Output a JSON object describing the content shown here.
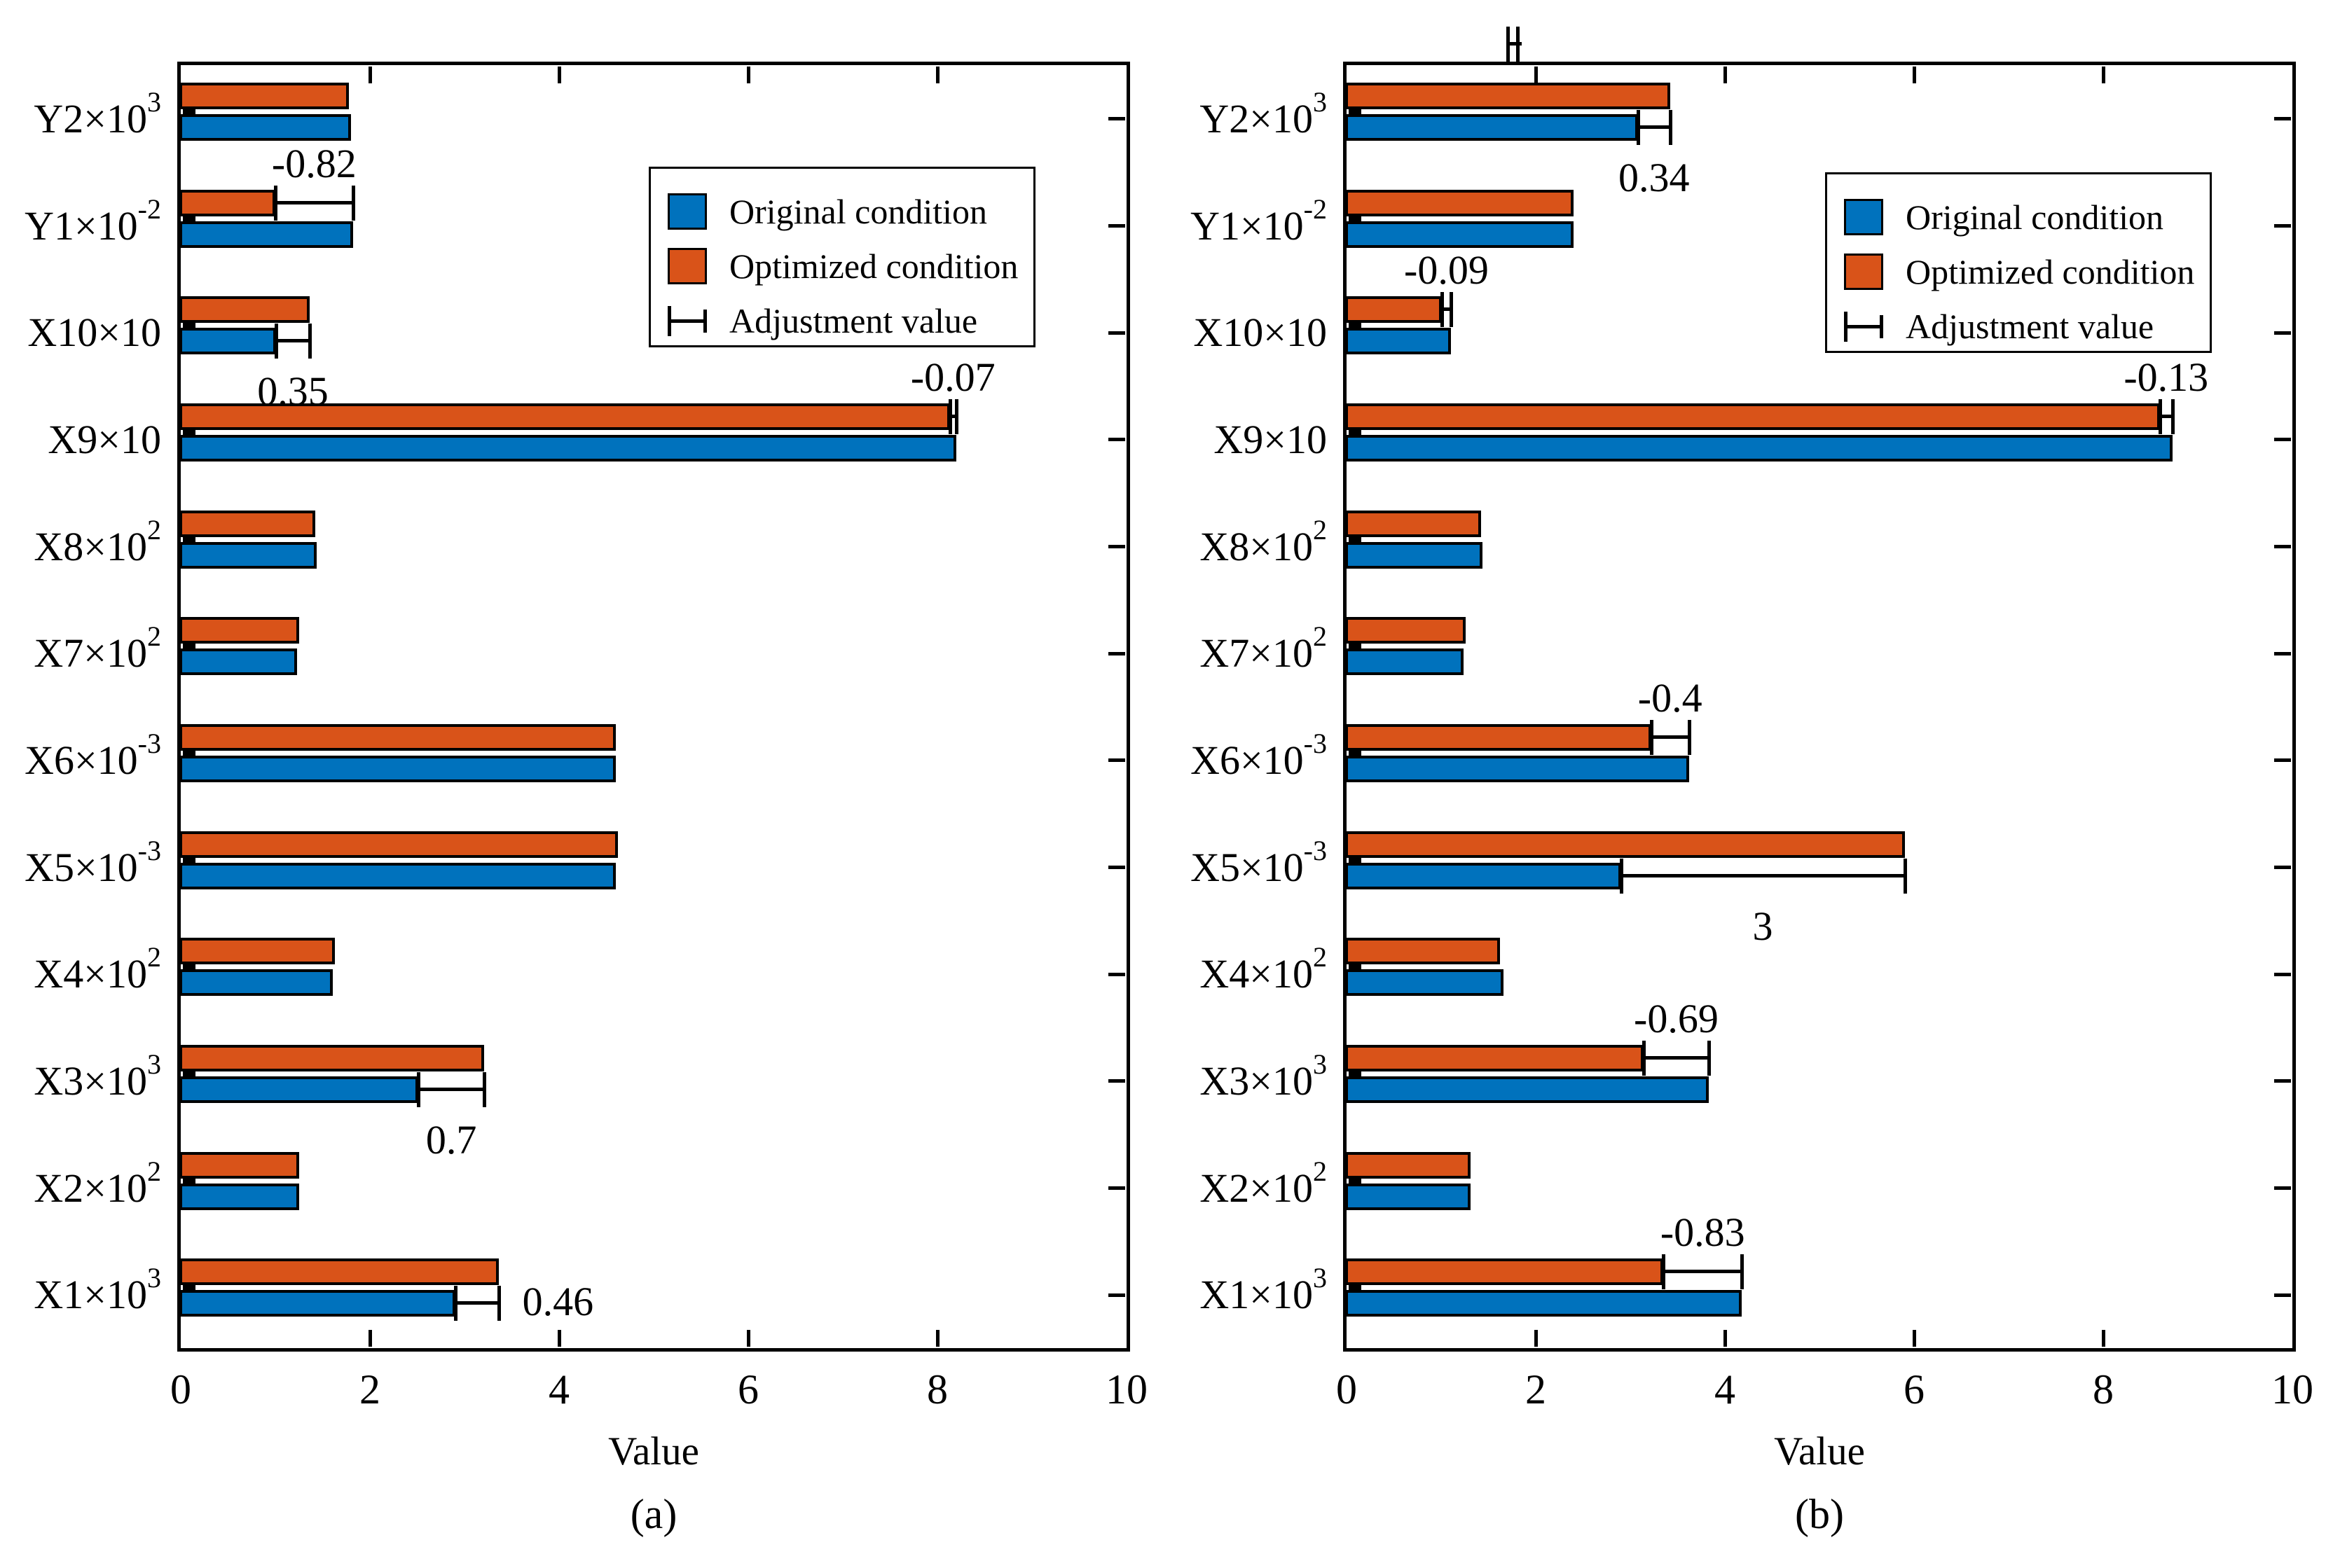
{
  "figure": {
    "background": "#ffffff",
    "axis_color": "#000000",
    "colors": {
      "original": "#0072BD",
      "optimized": "#D95319"
    },
    "xlabel": "Value",
    "x_tick_labels": [
      "0",
      "2",
      "4",
      "6",
      "8",
      "10"
    ],
    "legend": {
      "items": [
        {
          "type": "swatch",
          "color_key": "original",
          "label": "Original condition"
        },
        {
          "type": "swatch",
          "color_key": "optimized",
          "label": "Optimized condition"
        },
        {
          "type": "errorbar",
          "label": "Adjustment value"
        }
      ]
    }
  },
  "chart_data": [
    {
      "type": "bar",
      "orientation": "horizontal",
      "panel": "a",
      "caption": "(a)",
      "xlabel": "Value",
      "xlim": [
        0,
        10
      ],
      "x_ticks": [
        0,
        2,
        4,
        6,
        8,
        10
      ],
      "grid": false,
      "legend_entries": [
        "Original condition",
        "Optimized condition",
        "Adjustment value"
      ],
      "legend_position": "upper-right-inside",
      "categories_top_to_bottom": [
        "Y2×10³",
        "Y1×10⁻²",
        "X10×10",
        "X9×10",
        "X8×10²",
        "X7×10²",
        "X6×10⁻³",
        "X5×10⁻³",
        "X4×10²",
        "X3×10³",
        "X2×10²",
        "X1×10³"
      ],
      "category_parts": [
        {
          "base": "Y2×10",
          "sup": "3"
        },
        {
          "base": "Y1×10",
          "sup": "-2"
        },
        {
          "base": "X10×10",
          "sup": ""
        },
        {
          "base": "X9×10",
          "sup": ""
        },
        {
          "base": "X8×10",
          "sup": "2"
        },
        {
          "base": "X7×10",
          "sup": "2"
        },
        {
          "base": "X6×10",
          "sup": "-3"
        },
        {
          "base": "X5×10",
          "sup": "-3"
        },
        {
          "base": "X4×10",
          "sup": "2"
        },
        {
          "base": "X3×10",
          "sup": "3"
        },
        {
          "base": "X2×10",
          "sup": "2"
        },
        {
          "base": "X1×10",
          "sup": "3"
        }
      ],
      "series": [
        {
          "name": "Original condition",
          "color": "#0072BD",
          "values": [
            1.8,
            1.82,
            1.01,
            8.2,
            1.44,
            1.23,
            4.6,
            4.6,
            1.61,
            2.51,
            1.25,
            2.9
          ]
        },
        {
          "name": "Optimized condition",
          "color": "#D95319",
          "values": [
            1.78,
            1.0,
            1.36,
            8.13,
            1.42,
            1.25,
            4.6,
            4.62,
            1.63,
            3.21,
            1.25,
            3.36
          ]
        }
      ],
      "adjustments": [
        {
          "row": 1,
          "label": "-0.82",
          "value": -0.82,
          "from": 1.0,
          "to": 1.82,
          "anchor": "optimized",
          "label_pos": "above"
        },
        {
          "row": 2,
          "label": "0.35",
          "value": 0.35,
          "from": 1.01,
          "to": 1.36,
          "anchor": "original",
          "label_pos": "below"
        },
        {
          "row": 3,
          "label": "-0.07",
          "value": -0.07,
          "from": 8.13,
          "to": 8.2,
          "anchor": "optimized",
          "label_pos": "above"
        },
        {
          "row": 9,
          "label": "0.7",
          "value": 0.7,
          "from": 2.51,
          "to": 3.21,
          "anchor": "original",
          "label_pos": "below"
        },
        {
          "row": 11,
          "label": "0.46",
          "value": 0.46,
          "from": 2.9,
          "to": 3.36,
          "anchor": "original",
          "label_pos": "right"
        }
      ]
    },
    {
      "type": "bar",
      "orientation": "horizontal",
      "panel": "b",
      "caption": "(b)",
      "xlabel": "Value",
      "xlim": [
        0,
        10
      ],
      "x_ticks": [
        0,
        2,
        4,
        6,
        8,
        10
      ],
      "grid": false,
      "legend_entries": [
        "Original condition",
        "Optimized condition",
        "Adjustment value"
      ],
      "legend_position": "upper-right-inside",
      "categories_top_to_bottom": [
        "Y2×10³",
        "Y1×10⁻²",
        "X10×10",
        "X9×10",
        "X8×10²",
        "X7×10²",
        "X6×10⁻³",
        "X5×10⁻³",
        "X4×10²",
        "X3×10³",
        "X2×10²",
        "X1×10³"
      ],
      "category_parts": [
        {
          "base": "Y2×10",
          "sup": "3"
        },
        {
          "base": "Y1×10",
          "sup": "-2"
        },
        {
          "base": "X10×10",
          "sup": ""
        },
        {
          "base": "X9×10",
          "sup": ""
        },
        {
          "base": "X8×10",
          "sup": "2"
        },
        {
          "base": "X7×10",
          "sup": "2"
        },
        {
          "base": "X6×10",
          "sup": "-3"
        },
        {
          "base": "X5×10",
          "sup": "-3"
        },
        {
          "base": "X4×10",
          "sup": "2"
        },
        {
          "base": "X3×10",
          "sup": "3"
        },
        {
          "base": "X2×10",
          "sup": "2"
        },
        {
          "base": "X1×10",
          "sup": "3"
        }
      ],
      "series": [
        {
          "name": "Original condition",
          "color": "#0072BD",
          "values": [
            3.08,
            2.4,
            1.1,
            8.73,
            1.44,
            1.24,
            3.62,
            2.9,
            1.66,
            3.83,
            1.31,
            4.18
          ]
        },
        {
          "name": "Optimized condition",
          "color": "#D95319",
          "values": [
            3.42,
            2.4,
            1.01,
            8.6,
            1.42,
            1.26,
            3.22,
            5.9,
            1.62,
            3.14,
            1.31,
            3.35
          ]
        }
      ],
      "adjustments": [
        {
          "row": 0,
          "label": "0.34",
          "value": 0.34,
          "from": 3.08,
          "to": 3.42,
          "anchor": "original",
          "label_pos": "below"
        },
        {
          "row": 2,
          "label": "-0.09",
          "value": -0.09,
          "from": 1.01,
          "to": 1.1,
          "anchor": "optimized",
          "label_pos": "above"
        },
        {
          "row": 3,
          "label": "-0.13",
          "value": -0.13,
          "from": 8.6,
          "to": 8.73,
          "anchor": "optimized",
          "label_pos": "above"
        },
        {
          "row": 6,
          "label": "-0.4",
          "value": -0.4,
          "from": 3.22,
          "to": 3.62,
          "anchor": "optimized",
          "label_pos": "above"
        },
        {
          "row": 7,
          "label": "3",
          "value": 3,
          "from": 2.9,
          "to": 5.9,
          "anchor": "original",
          "label_pos": "below"
        },
        {
          "row": 9,
          "label": "-0.69",
          "value": -0.69,
          "from": 3.14,
          "to": 3.83,
          "anchor": "optimized",
          "label_pos": "above"
        },
        {
          "row": 11,
          "label": "-0.83",
          "value": -0.83,
          "from": 3.35,
          "to": 4.18,
          "anchor": "optimized",
          "label_pos": "above"
        }
      ],
      "clipped_errorbar_above_axis": {
        "x_from": 1.7,
        "x_to": 1.81
      }
    }
  ]
}
